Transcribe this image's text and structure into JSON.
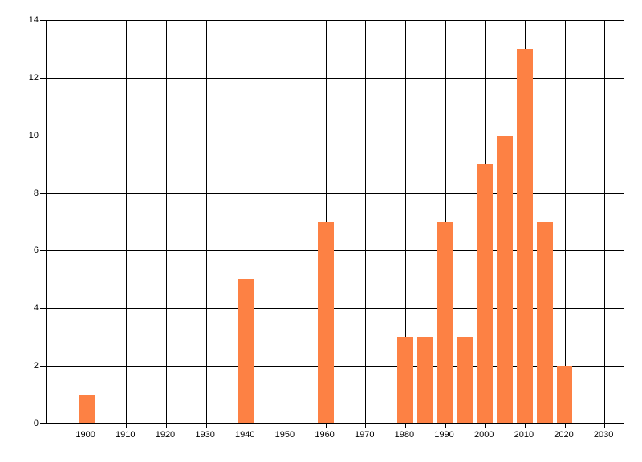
{
  "chart": {
    "background": "#FFFFFF",
    "grid_color": "#000000",
    "axis_color": "#000000",
    "bar_color": "#FD8144",
    "label_color": "#000000"
  },
  "chart_data": {
    "type": "bar",
    "title": "",
    "xlabel": "",
    "ylabel": "",
    "x": [
      1900,
      1940,
      1960,
      1980,
      1985,
      1990,
      1995,
      2000,
      2005,
      2010,
      2015,
      2020
    ],
    "values": [
      1,
      5,
      7,
      3,
      3,
      7,
      3,
      9,
      10,
      13,
      7,
      2
    ],
    "bar_width_years": 4,
    "xlim": [
      1890,
      2035
    ],
    "ylim": [
      0,
      14
    ],
    "x_ticks": [
      1900,
      1910,
      1920,
      1930,
      1940,
      1950,
      1960,
      1970,
      1980,
      1990,
      2000,
      2010,
      2020,
      2030
    ],
    "y_ticks": [
      0,
      2,
      4,
      6,
      8,
      10,
      12,
      14
    ],
    "grid": true,
    "legend_position": "none"
  }
}
